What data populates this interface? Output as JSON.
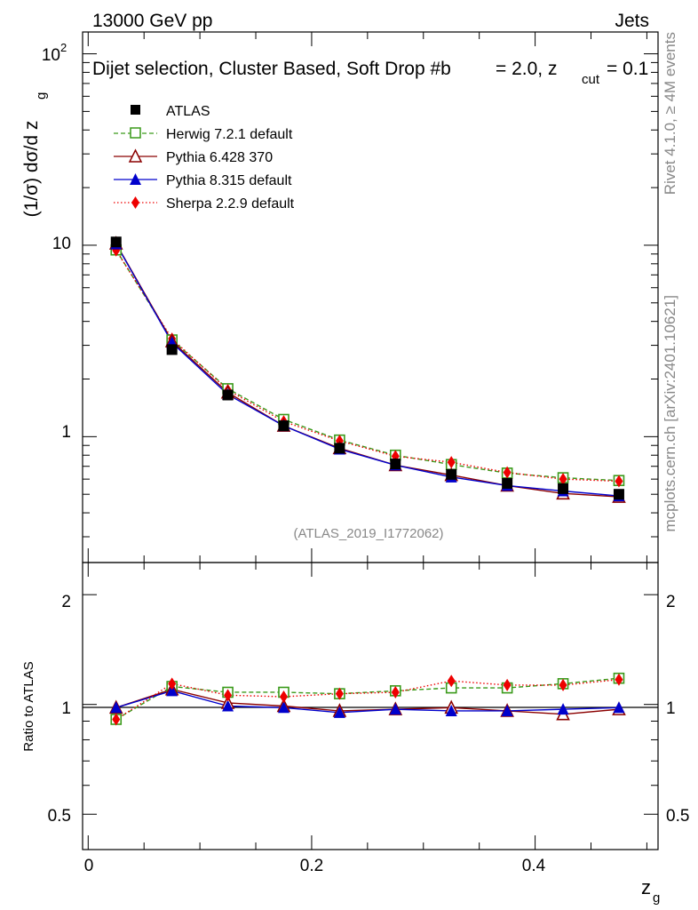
{
  "header": {
    "energy": "13000 GeV pp",
    "category": "Jets"
  },
  "side_text": {
    "rivet": "Rivet 4.1.0, ≥ 4M events",
    "site": "mcplots.cern.ch [arXiv:2401.10621]"
  },
  "chart_data": [
    {
      "type": "line",
      "title": "Dijet selection, Cluster Based, Soft Drop #b",
      "title_beta_label": "= 2.0, z",
      "title_cut_sub": "cut",
      "title_cut_value": "= 0.1",
      "ylabel": "(1/σ) dσ/d z",
      "ylabel_sub": "g",
      "xlabel": "z",
      "xlabel_sub": "g",
      "yscale": "log",
      "xlim": [
        -0.005,
        0.51
      ],
      "ylim": [
        0.22,
        130
      ],
      "ytick_labels": [
        "1",
        "10",
        "10"
      ],
      "ytick_sup": "2",
      "analysis_tag": "(ATLAS_2019_I1772062)",
      "x": [
        0.025,
        0.075,
        0.125,
        0.175,
        0.225,
        0.275,
        0.325,
        0.375,
        0.425,
        0.475
      ],
      "series": [
        {
          "name": "ATLAS",
          "color": "#000000",
          "marker": "square-filled",
          "line": "none",
          "values": [
            10.4,
            2.85,
            1.65,
            1.14,
            0.87,
            0.72,
            0.635,
            0.57,
            0.535,
            0.5
          ]
        },
        {
          "name": "Herwig 7.2.1 default",
          "color": "#3a9a1a",
          "marker": "square-open",
          "line": "dashed",
          "values": [
            9.45,
            3.2,
            1.78,
            1.23,
            0.96,
            0.8,
            0.715,
            0.645,
            0.61,
            0.59
          ]
        },
        {
          "name": "Pythia 6.428 370",
          "color": "#8b0000",
          "marker": "triangle-open",
          "line": "solid",
          "values": [
            10.2,
            3.15,
            1.7,
            1.14,
            0.87,
            0.71,
            0.63,
            0.555,
            0.505,
            0.485
          ]
        },
        {
          "name": "Pythia 8.315 default",
          "color": "#0000cc",
          "marker": "triangle-filled",
          "line": "solid",
          "values": [
            10.15,
            3.1,
            1.66,
            1.14,
            0.86,
            0.71,
            0.615,
            0.555,
            0.52,
            0.49
          ]
        },
        {
          "name": "Sherpa 2.2.9 default",
          "color": "#ee0000",
          "marker": "diamond-filled",
          "line": "dotted",
          "values": [
            9.4,
            3.25,
            1.75,
            1.2,
            0.95,
            0.79,
            0.735,
            0.65,
            0.6,
            0.585
          ]
        }
      ]
    },
    {
      "type": "line",
      "ylabel": "Ratio to ATLAS",
      "xlabel": "z",
      "xlabel_sub": "g",
      "yscale": "log",
      "xlim": [
        -0.005,
        0.51
      ],
      "ylim": [
        0.4,
        2.45
      ],
      "ytick_labels": [
        "0.5",
        "1",
        "2"
      ],
      "xtick_labels": [
        "0",
        "0.2",
        "0.4"
      ],
      "reference_line": 1,
      "x": [
        0.025,
        0.075,
        0.125,
        0.175,
        0.225,
        0.275,
        0.325,
        0.375,
        0.425,
        0.475
      ],
      "series": [
        {
          "name": "Herwig 7.2.1 default",
          "values": [
            0.91,
            1.12,
            1.08,
            1.08,
            1.07,
            1.09,
            1.11,
            1.11,
            1.14,
            1.18
          ]
        },
        {
          "name": "Pythia 6.428 370",
          "values": [
            0.98,
            1.1,
            1.01,
            0.99,
            0.96,
            0.97,
            0.98,
            0.96,
            0.94,
            0.97
          ]
        },
        {
          "name": "Pythia 8.315 default",
          "values": [
            0.98,
            1.09,
            0.99,
            0.98,
            0.95,
            0.97,
            0.96,
            0.96,
            0.97,
            0.98
          ]
        },
        {
          "name": "Sherpa 2.2.9 default",
          "values": [
            0.91,
            1.14,
            1.06,
            1.05,
            1.07,
            1.08,
            1.16,
            1.13,
            1.13,
            1.17
          ]
        }
      ]
    }
  ]
}
